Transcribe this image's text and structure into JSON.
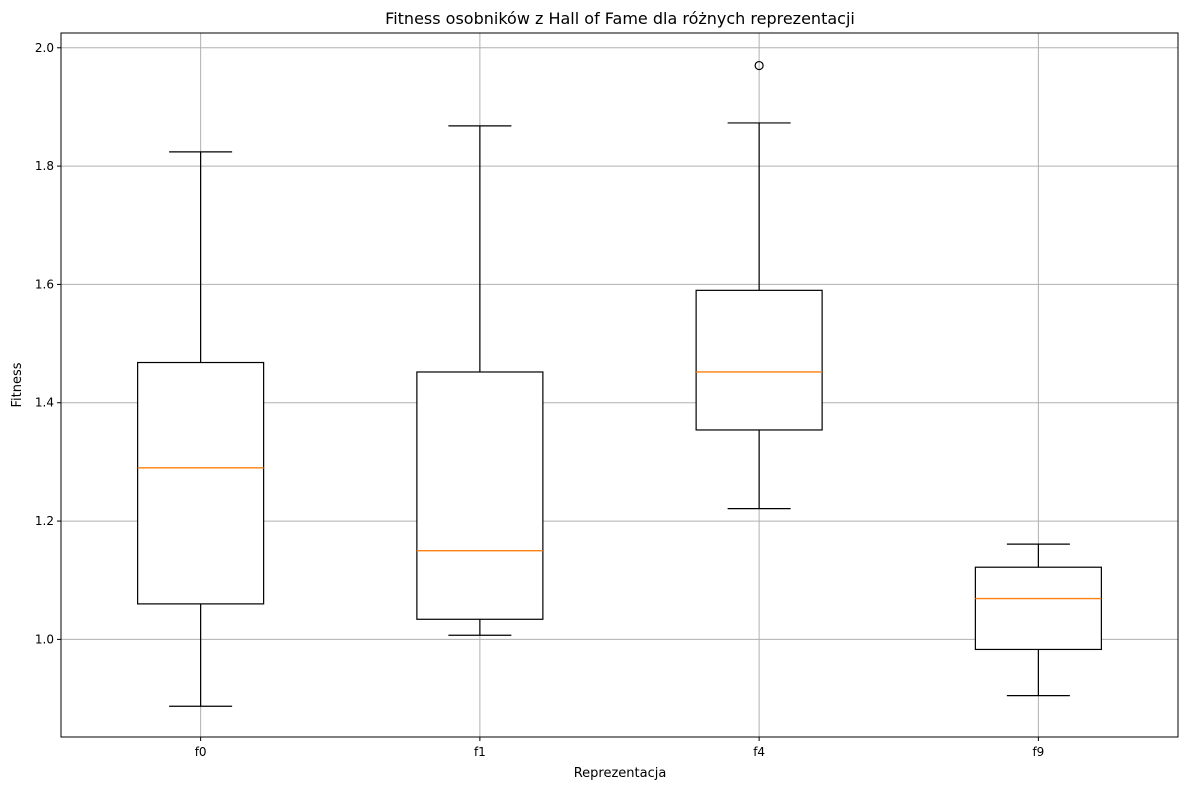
{
  "chart_data": {
    "type": "box",
    "title": "Fitness osobników z Hall of Fame dla różnych reprezentacji",
    "xlabel": "Reprezentacja",
    "ylabel": "Fitness",
    "categories": [
      "f0",
      "f1",
      "f4",
      "f9"
    ],
    "ylim": [
      0.835,
      2.025
    ],
    "yticks": [
      1.0,
      1.2,
      1.4,
      1.6,
      1.8,
      2.0
    ],
    "ytick_labels": [
      "1.0",
      "1.2",
      "1.4",
      "1.6",
      "1.8",
      "2.0"
    ],
    "grid": true,
    "boxes": [
      {
        "label": "f0",
        "whisker_low": 0.887,
        "q1": 1.06,
        "median": 1.29,
        "q3": 1.468,
        "whisker_high": 1.824,
        "outliers": []
      },
      {
        "label": "f1",
        "whisker_low": 1.007,
        "q1": 1.034,
        "median": 1.15,
        "q3": 1.452,
        "whisker_high": 1.868,
        "outliers": []
      },
      {
        "label": "f4",
        "whisker_low": 1.221,
        "q1": 1.354,
        "median": 1.452,
        "q3": 1.59,
        "whisker_high": 1.873,
        "outliers": [
          1.97
        ]
      },
      {
        "label": "f9",
        "whisker_low": 0.905,
        "q1": 0.983,
        "median": 1.069,
        "q3": 1.122,
        "whisker_high": 1.161,
        "outliers": []
      }
    ],
    "colors": {
      "box": "#000000",
      "median": "#ff7f0e",
      "grid": "#b0b0b0"
    }
  }
}
